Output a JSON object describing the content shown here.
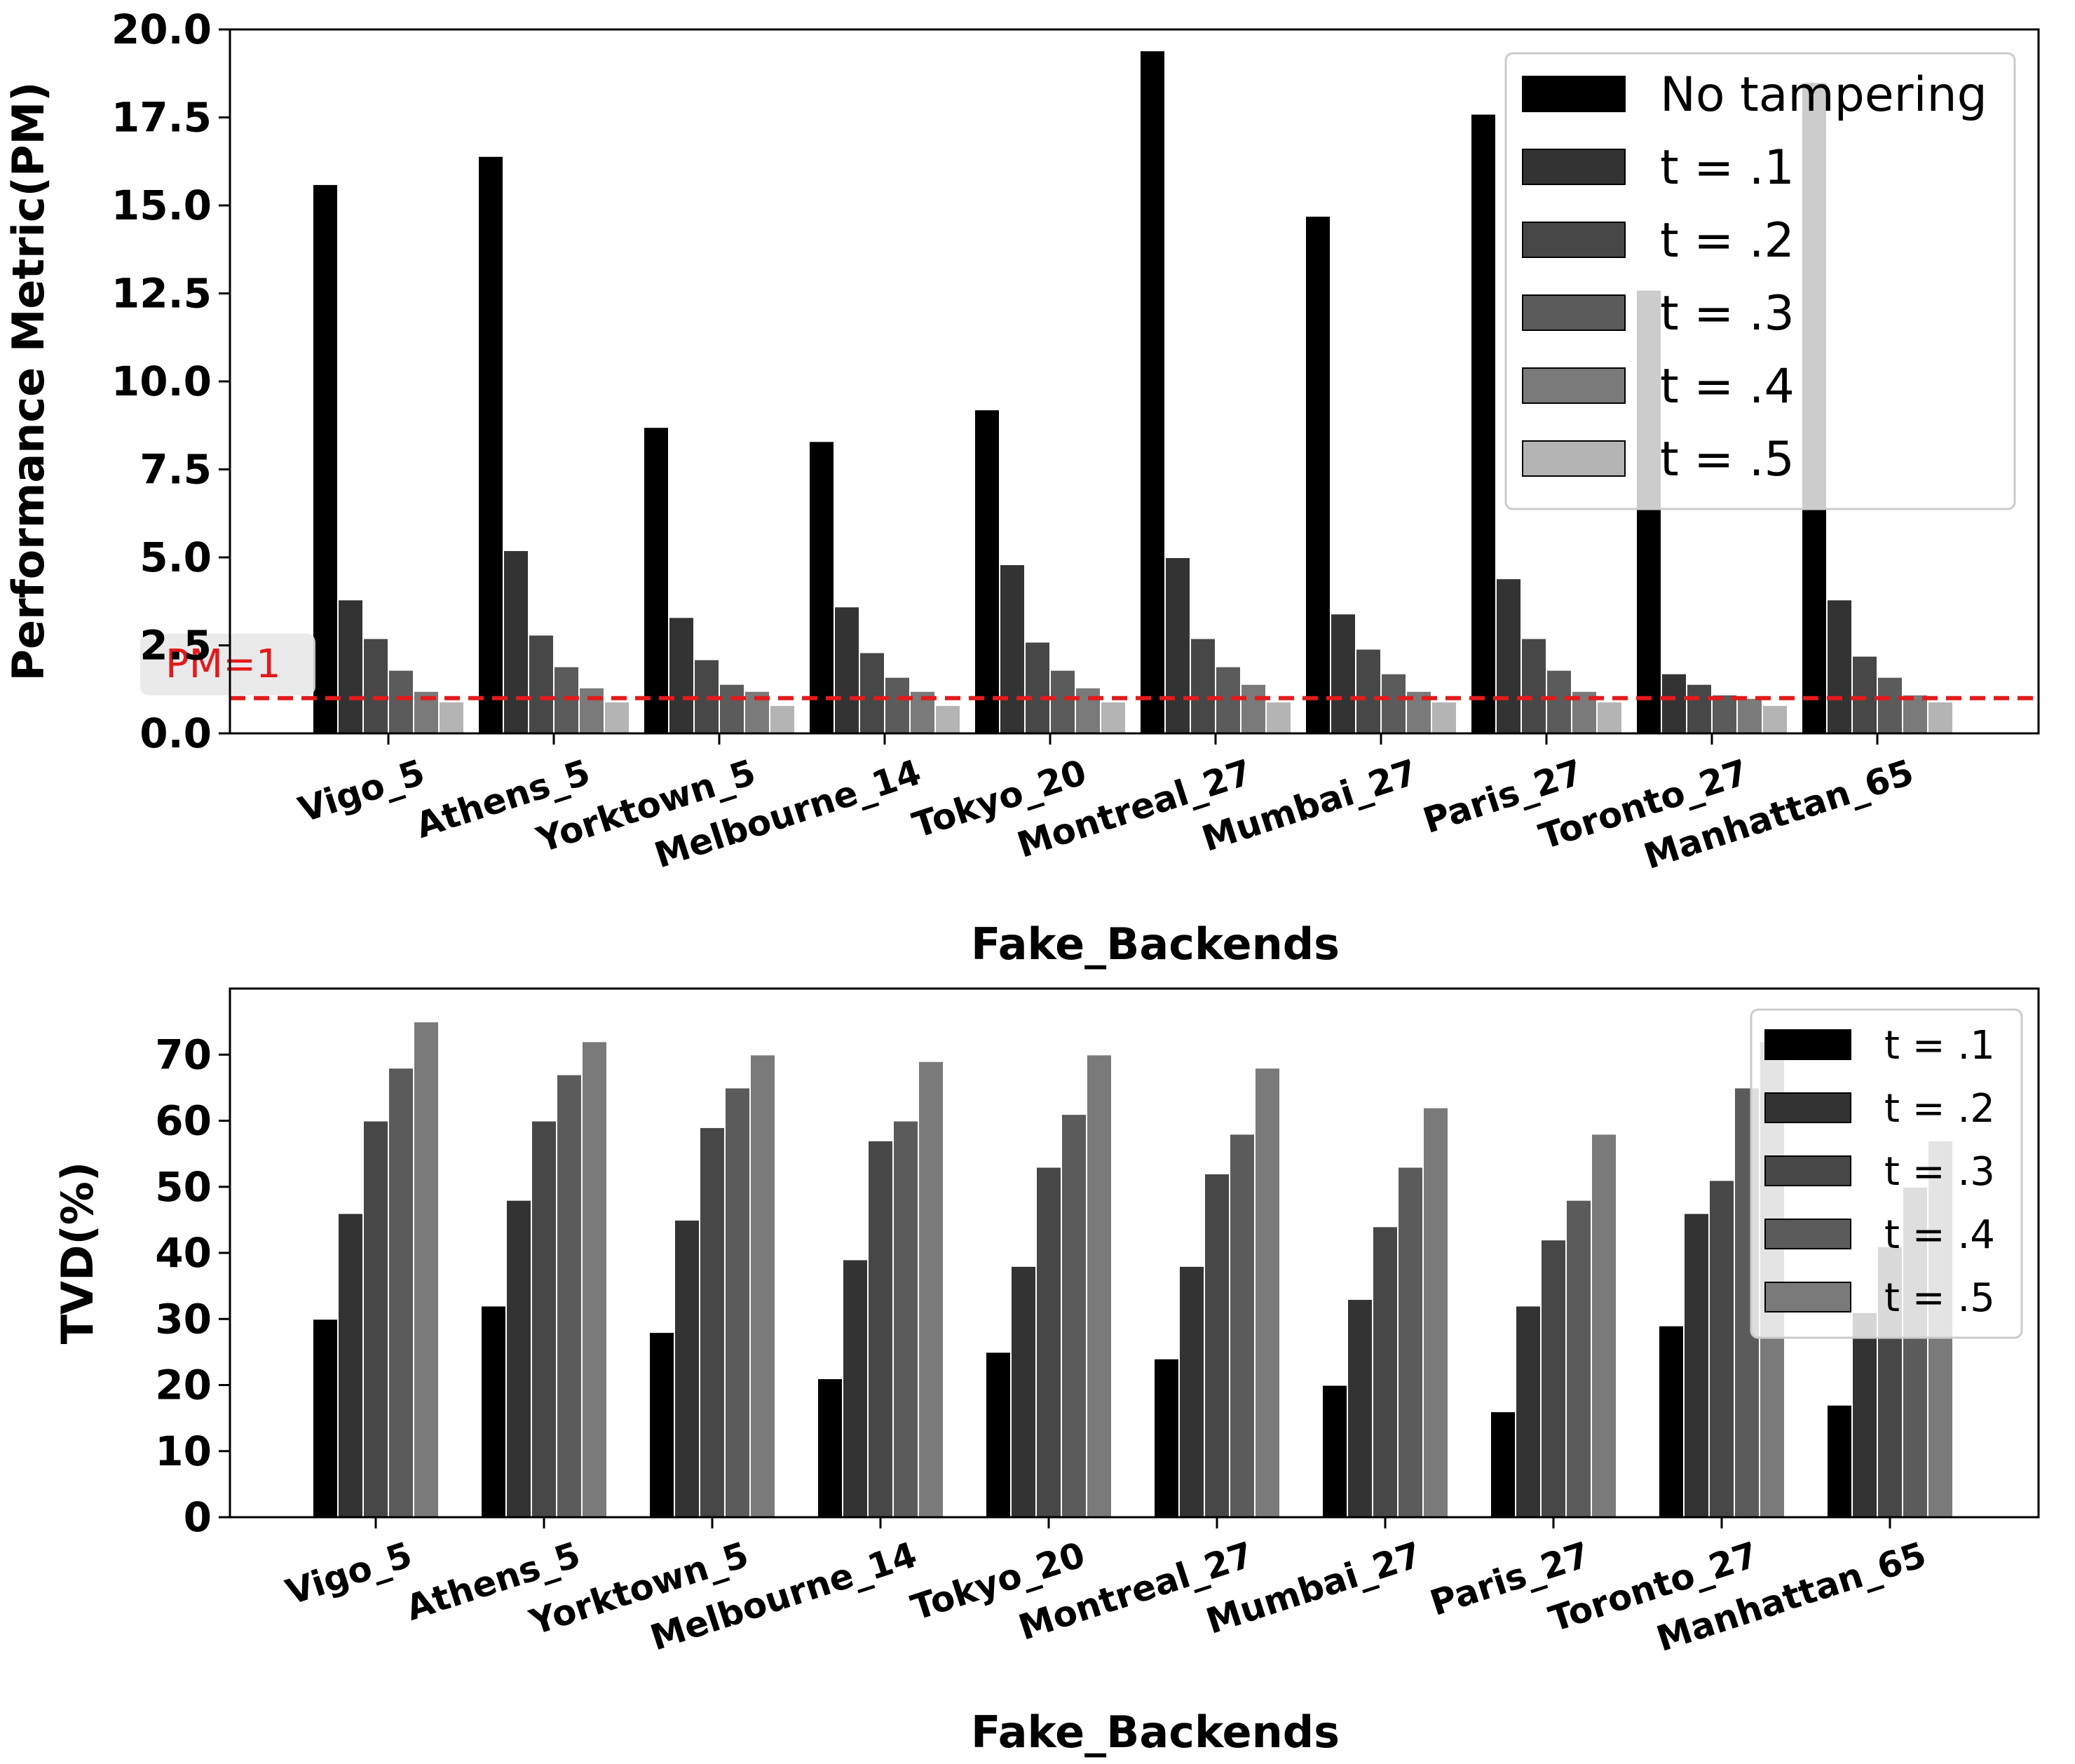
{
  "chart_data": [
    {
      "type": "bar",
      "categories": [
        "Vigo_5",
        "Athens_5",
        "Yorktown_5",
        "Melbourne_14",
        "Tokyo_20",
        "Montreal_27",
        "Mumbai_27",
        "Paris_27",
        "Toronto_27",
        "Manhattan_65"
      ],
      "series": [
        {
          "name": "No tampering",
          "color": "#000000",
          "values": [
            15.6,
            16.4,
            8.7,
            8.3,
            9.2,
            19.4,
            14.7,
            17.6,
            12.6,
            18.5
          ]
        },
        {
          "name": "t = .1",
          "color": "#333333",
          "values": [
            3.8,
            5.2,
            3.3,
            3.6,
            4.8,
            5.0,
            3.4,
            4.4,
            1.7,
            3.8
          ]
        },
        {
          "name": "t = .2",
          "color": "#474747",
          "values": [
            2.7,
            2.8,
            2.1,
            2.3,
            2.6,
            2.7,
            2.4,
            2.7,
            1.4,
            2.2
          ]
        },
        {
          "name": "t = .3",
          "color": "#5b5b5b",
          "values": [
            1.8,
            1.9,
            1.4,
            1.6,
            1.8,
            1.9,
            1.7,
            1.8,
            1.1,
            1.6
          ]
        },
        {
          "name": "t = .4",
          "color": "#7a7a7a",
          "values": [
            1.2,
            1.3,
            1.2,
            1.2,
            1.3,
            1.4,
            1.2,
            1.2,
            1.0,
            1.1
          ]
        },
        {
          "name": "t = .5",
          "color": "#b4b4b4",
          "values": [
            0.9,
            0.9,
            0.8,
            0.8,
            0.9,
            0.9,
            0.9,
            0.9,
            0.8,
            0.9
          ]
        }
      ],
      "xlabel": "Fake_Backends",
      "ylabel": "Performance Metric(PM)",
      "ylim": [
        0,
        20
      ],
      "yticks": [
        "0.0",
        "2.5",
        "5.0",
        "7.5",
        "10.0",
        "12.5",
        "15.0",
        "17.5",
        "20.0"
      ],
      "reference_line": {
        "value": 1,
        "label": "PM=1",
        "color": "#e31a1c",
        "style": "dashed"
      },
      "legend_position": "top-right",
      "grid": false
    },
    {
      "type": "bar",
      "categories": [
        "Vigo_5",
        "Athens_5",
        "Yorktown_5",
        "Melbourne_14",
        "Tokyo_20",
        "Montreal_27",
        "Mumbai_27",
        "Paris_27",
        "Toronto_27",
        "Manhattan_65"
      ],
      "series": [
        {
          "name": "t = .1",
          "color": "#000000",
          "values": [
            30,
            32,
            28,
            21,
            25,
            24,
            20,
            16,
            29,
            17
          ]
        },
        {
          "name": "t = .2",
          "color": "#333333",
          "values": [
            46,
            48,
            45,
            39,
            38,
            38,
            33,
            32,
            46,
            31
          ]
        },
        {
          "name": "t = .3",
          "color": "#474747",
          "values": [
            60,
            60,
            59,
            57,
            53,
            52,
            44,
            42,
            51,
            41
          ]
        },
        {
          "name": "t = .4",
          "color": "#5b5b5b",
          "values": [
            68,
            67,
            65,
            60,
            61,
            58,
            53,
            48,
            65,
            50
          ]
        },
        {
          "name": "t = .5",
          "color": "#7a7a7a",
          "values": [
            75,
            72,
            70,
            69,
            70,
            68,
            62,
            58,
            72,
            57
          ]
        }
      ],
      "xlabel": "Fake_Backends",
      "ylabel": "TVD(%)",
      "ylim": [
        0,
        80
      ],
      "yticks": [
        "0",
        "10",
        "20",
        "30",
        "40",
        "50",
        "60",
        "70"
      ],
      "legend_position": "top-right",
      "grid": false
    }
  ]
}
